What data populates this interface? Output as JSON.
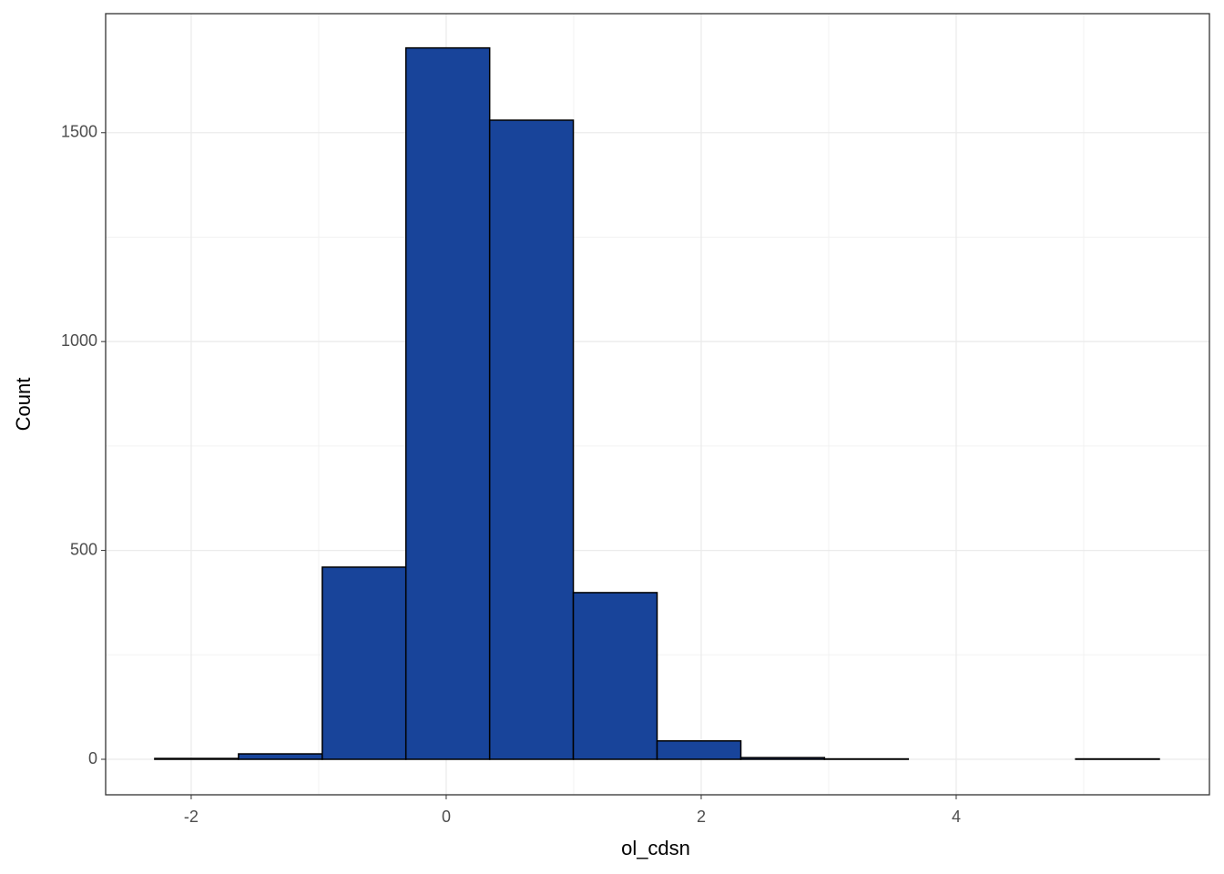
{
  "chart_data": {
    "type": "histogram",
    "x_label": "ol_cdsn",
    "y_label": "Count",
    "bins": [
      -2.286,
      -1.629,
      -0.972,
      -0.316,
      0.341,
      0.997,
      1.654,
      2.311,
      2.967,
      3.624,
      4.28,
      4.937,
      5.593
    ],
    "counts": [
      2,
      13,
      460,
      1703,
      1530,
      399,
      44,
      4,
      1,
      0,
      0,
      1
    ],
    "color": "#18449a",
    "xlim": [
      -2.671,
      5.986
    ],
    "ylim": [
      -85,
      1785
    ],
    "xticks": [
      -2,
      0,
      2,
      4
    ],
    "yticks": [
      0,
      500,
      1000,
      1500
    ],
    "minor_xticks": [
      -1,
      1,
      3,
      5
    ],
    "minor_yticks": [
      250,
      750,
      1250
    ],
    "grid": true
  }
}
